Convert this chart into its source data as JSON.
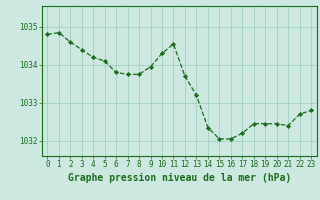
{
  "x": [
    0,
    1,
    2,
    3,
    4,
    5,
    6,
    7,
    8,
    9,
    10,
    11,
    12,
    13,
    14,
    15,
    16,
    17,
    18,
    19,
    20,
    21,
    22,
    23
  ],
  "y": [
    1034.8,
    1034.85,
    1034.6,
    1034.4,
    1034.2,
    1034.1,
    1033.8,
    1033.75,
    1033.75,
    1033.95,
    1034.3,
    1034.55,
    1033.7,
    1033.2,
    1032.35,
    1032.05,
    1032.05,
    1032.2,
    1032.45,
    1032.45,
    1032.45,
    1032.4,
    1032.7,
    1032.8
  ],
  "line_color": "#1a6e1a",
  "marker_color": "#1a6e1a",
  "bg_color": "#cce8e0",
  "grid_color": "#99ccbb",
  "xlabel": "Graphe pression niveau de la mer (hPa)",
  "ylim_min": 1031.6,
  "ylim_max": 1035.55,
  "ytick_values": [
    1032,
    1033,
    1034,
    1035
  ],
  "xtick_labels": [
    "0",
    "1",
    "2",
    "3",
    "4",
    "5",
    "6",
    "7",
    "8",
    "9",
    "10",
    "11",
    "12",
    "13",
    "14",
    "15",
    "16",
    "17",
    "18",
    "19",
    "20",
    "21",
    "22",
    "23"
  ],
  "xlabel_fontsize": 7.0,
  "tick_fontsize": 5.5,
  "linewidth": 0.9,
  "markersize": 2.2
}
